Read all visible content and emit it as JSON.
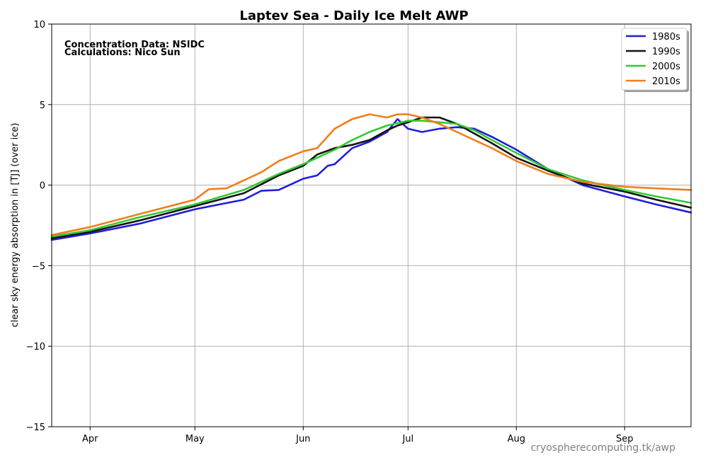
{
  "chart_data": {
    "type": "line",
    "title": "Laptev Sea - Daily Ice Melt  AWP",
    "ylabel": "clear sky energy absorption in  [TJ] (over ice)",
    "xlabel": "",
    "annotations": [
      "Concentration Data: NSIDC",
      "Calculations: Nico Sun"
    ],
    "watermark": "cryospherecomputing.tk/awp",
    "xlim": [
      "Mar 21",
      "Sep 20"
    ],
    "ylim": [
      -15,
      10
    ],
    "x_ticks": [
      {
        "label": "Apr",
        "date": "Apr 1"
      },
      {
        "label": "May",
        "date": "May 1"
      },
      {
        "label": "Jun",
        "date": "Jun 1"
      },
      {
        "label": "Jul",
        "date": "Jul 1"
      },
      {
        "label": "Aug",
        "date": "Aug 1"
      },
      {
        "label": "Sep",
        "date": "Sep 1"
      }
    ],
    "y_ticks": [
      {
        "label": "10",
        "value": 10
      },
      {
        "label": "5",
        "value": 5
      },
      {
        "label": "0",
        "value": 0
      },
      {
        "label": "−5",
        "value": -5
      },
      {
        "label": "−10",
        "value": -10
      },
      {
        "label": "−15",
        "value": -15
      }
    ],
    "grid": true,
    "legend_position": "top-right",
    "series": [
      {
        "name": "1980s",
        "color": "#1f1fdc",
        "x": [
          "Mar 21",
          "Apr 1",
          "Apr 15",
          "May 1",
          "May 15",
          "May 20",
          "May 25",
          "Jun 1",
          "Jun 5",
          "Jun 8",
          "Jun 10",
          "Jun 15",
          "Jun 20",
          "Jun 25",
          "Jun 28",
          "Jul 1",
          "Jul 5",
          "Jul 10",
          "Jul 15",
          "Jul 20",
          "Jul 25",
          "Aug 1",
          "Aug 10",
          "Aug 20",
          "Sep 1",
          "Sep 10",
          "Sep 20"
        ],
        "y": [
          -3.4,
          -3.0,
          -2.4,
          -1.5,
          -0.9,
          -0.35,
          -0.3,
          0.4,
          0.6,
          1.2,
          1.3,
          2.3,
          2.7,
          3.3,
          4.1,
          3.5,
          3.3,
          3.5,
          3.6,
          3.5,
          3.0,
          2.2,
          1.0,
          0.0,
          -0.7,
          -1.2,
          -1.7
        ]
      },
      {
        "name": "1990s",
        "color": "#141414",
        "x": [
          "Mar 21",
          "Apr 1",
          "Apr 15",
          "May 1",
          "May 15",
          "May 25",
          "Jun 1",
          "Jun 5",
          "Jun 10",
          "Jun 15",
          "Jun 20",
          "Jun 25",
          "Jun 28",
          "Jul 1",
          "Jul 5",
          "Jul 10",
          "Jul 15",
          "Jul 20",
          "Jul 25",
          "Aug 1",
          "Aug 10",
          "Aug 20",
          "Sep 1",
          "Sep 10",
          "Sep 20"
        ],
        "y": [
          -3.3,
          -2.9,
          -2.2,
          -1.3,
          -0.5,
          0.6,
          1.2,
          1.9,
          2.3,
          2.5,
          2.8,
          3.4,
          3.7,
          3.9,
          4.2,
          4.2,
          3.8,
          3.2,
          2.6,
          1.7,
          0.9,
          0.1,
          -0.4,
          -0.9,
          -1.4
        ]
      },
      {
        "name": "2000s",
        "color": "#33c833",
        "x": [
          "Mar 21",
          "Apr 1",
          "Apr 15",
          "May 1",
          "May 15",
          "May 25",
          "Jun 1",
          "Jun 5",
          "Jun 10",
          "Jun 15",
          "Jun 20",
          "Jun 25",
          "Jul 1",
          "Jul 5",
          "Jul 10",
          "Jul 15",
          "Jul 20",
          "Jul 25",
          "Aug 1",
          "Aug 10",
          "Aug 20",
          "Sep 1",
          "Sep 10",
          "Sep 20"
        ],
        "y": [
          -3.2,
          -2.8,
          -2.0,
          -1.2,
          -0.3,
          0.7,
          1.3,
          1.7,
          2.2,
          2.8,
          3.3,
          3.7,
          4.0,
          4.0,
          3.9,
          3.8,
          3.4,
          2.8,
          2.0,
          1.0,
          0.3,
          -0.3,
          -0.7,
          -1.1
        ]
      },
      {
        "name": "2010s",
        "color": "#ee7f1e",
        "x": [
          "Mar 21",
          "Apr 1",
          "Apr 15",
          "May 1",
          "May 5",
          "May 10",
          "May 15",
          "May 20",
          "May 25",
          "Jun 1",
          "Jun 5",
          "Jun 10",
          "Jun 15",
          "Jun 20",
          "Jun 25",
          "Jun 28",
          "Jul 1",
          "Jul 5",
          "Jul 10",
          "Jul 15",
          "Jul 20",
          "Jul 25",
          "Aug 1",
          "Aug 10",
          "Aug 20",
          "Sep 1",
          "Sep 10",
          "Sep 20"
        ],
        "y": [
          -3.1,
          -2.6,
          -1.8,
          -0.9,
          -0.25,
          -0.2,
          0.3,
          0.8,
          1.5,
          2.1,
          2.3,
          3.5,
          4.1,
          4.4,
          4.2,
          4.4,
          4.4,
          4.2,
          3.8,
          3.3,
          2.8,
          2.3,
          1.5,
          0.7,
          0.2,
          -0.1,
          -0.2,
          -0.3
        ]
      }
    ]
  }
}
